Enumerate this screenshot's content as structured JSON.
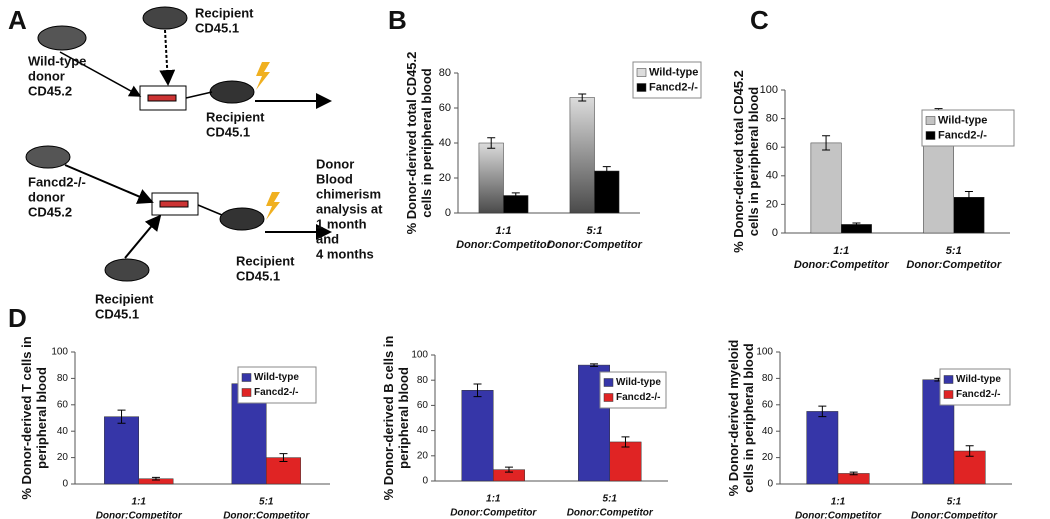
{
  "panel_labels": [
    "A",
    "B",
    "C",
    "D"
  ],
  "diagram": {
    "labels": [
      [
        "Recipient",
        "CD45.1"
      ],
      [
        "Wild-type",
        "donor",
        "CD45.2"
      ],
      [
        "Recipient",
        "CD45.1"
      ],
      [
        "Donor",
        "Blood",
        "chimerism",
        "analysis at",
        "1 month",
        "and",
        "4 months"
      ],
      [
        "Fancd2-/-",
        "donor",
        "CD45.2"
      ],
      [
        "Recipient",
        "CD45.1"
      ],
      [
        "Recipient",
        "CD45.1"
      ]
    ]
  },
  "chart_data": [
    {
      "type": "bar",
      "ylabel": [
        "% Donor-derived total CD45.2",
        "cells in peripheral blood"
      ],
      "categories": [
        [
          "1:1",
          "Donor:Competitor"
        ],
        [
          "5:1",
          "Donor:Competitor"
        ]
      ],
      "ylim": [
        0,
        80
      ],
      "yticks": [
        0,
        20,
        40,
        60,
        80
      ],
      "series": [
        {
          "name": "Wild-type",
          "color": "#9a9a9a",
          "gradient": [
            "#dcdcdc",
            "#4a4a4a"
          ],
          "values": [
            40,
            66
          ],
          "errors": [
            3,
            2
          ]
        },
        {
          "name": "Fancd2-/-",
          "color": "#000000",
          "values": [
            10,
            24
          ],
          "errors": [
            1.5,
            2.5
          ]
        }
      ]
    },
    {
      "type": "bar",
      "ylabel": [
        "% Donor-derived total CD45.2",
        "cells in peripheral blood"
      ],
      "categories": [
        [
          "1:1",
          "Donor:Competitor"
        ],
        [
          "5:1",
          "Donor:Competitor"
        ]
      ],
      "ylim": [
        0,
        100
      ],
      "yticks": [
        0,
        20,
        40,
        60,
        80,
        100
      ],
      "series": [
        {
          "name": "Wild-type",
          "color": "#c4c4c4",
          "values": [
            63,
            86
          ],
          "errors": [
            5,
            1
          ]
        },
        {
          "name": "Fancd2-/-",
          "color": "#000000",
          "values": [
            6,
            25
          ],
          "errors": [
            1,
            4
          ]
        }
      ]
    },
    {
      "type": "bar",
      "ylabel": [
        "% Donor-derived T cells in",
        "peripheral blood"
      ],
      "categories": [
        [
          "1:1",
          "Donor:Competitor"
        ],
        [
          "5:1",
          "Donor:Competitor"
        ]
      ],
      "ylim": [
        0,
        100
      ],
      "yticks": [
        0,
        20,
        40,
        60,
        80,
        100
      ],
      "series": [
        {
          "name": "Wild-type",
          "color": "#3636a8",
          "values": [
            51,
            76
          ],
          "errors": [
            5,
            1
          ]
        },
        {
          "name": "Fancd2-/-",
          "color": "#e02424",
          "values": [
            4,
            20
          ],
          "errors": [
            1,
            3
          ]
        }
      ]
    },
    {
      "type": "bar",
      "ylabel": [
        "% Donor-derived B cells in",
        "peripheral blood"
      ],
      "categories": [
        [
          "1:1",
          "Donor:Competitor"
        ],
        [
          "5:1",
          "Donor:Competitor"
        ]
      ],
      "ylim": [
        0,
        100
      ],
      "yticks": [
        0,
        20,
        40,
        60,
        80,
        100
      ],
      "series": [
        {
          "name": "Wild-type",
          "color": "#3636a8",
          "values": [
            72,
            92
          ],
          "errors": [
            5,
            1
          ]
        },
        {
          "name": "Fancd2-/-",
          "color": "#e02424",
          "values": [
            9,
            31
          ],
          "errors": [
            2,
            4
          ]
        }
      ]
    },
    {
      "type": "bar",
      "ylabel": [
        "% Donor-derived myeloid",
        "cells in peripheral blood"
      ],
      "categories": [
        [
          "1:1",
          "Donor:Competitor"
        ],
        [
          "5:1",
          "Donor:Competitor"
        ]
      ],
      "ylim": [
        0,
        100
      ],
      "yticks": [
        0,
        20,
        40,
        60,
        80,
        100
      ],
      "series": [
        {
          "name": "Wild-type",
          "color": "#3636a8",
          "values": [
            55,
            79
          ],
          "errors": [
            4,
            1
          ]
        },
        {
          "name": "Fancd2-/-",
          "color": "#e02424",
          "values": [
            8,
            25
          ],
          "errors": [
            1,
            4
          ]
        }
      ]
    }
  ]
}
